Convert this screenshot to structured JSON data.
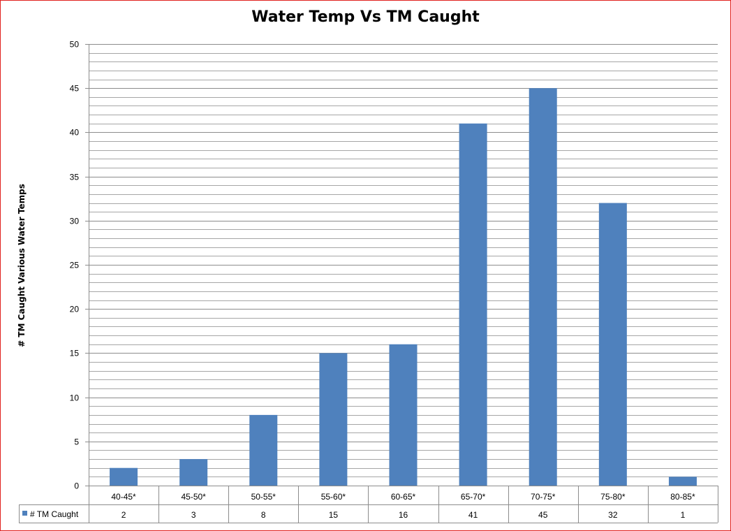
{
  "chart_data": {
    "type": "bar",
    "title": "Water Temp Vs TM Caught",
    "xlabel": "",
    "ylabel": "# TM Caught Various Water Temps",
    "categories": [
      "40-45*",
      "45-50*",
      "50-55*",
      "55-60*",
      "60-65*",
      "65-70*",
      "70-75*",
      "75-80*",
      "80-85*"
    ],
    "series": [
      {
        "name": "# TM Caught",
        "values": [
          2,
          3,
          8,
          15,
          16,
          41,
          45,
          32,
          1
        ]
      }
    ],
    "ylim": [
      0,
      50
    ],
    "y_major_tick_step": 5,
    "y_minor_grid_step": 1,
    "grid": true,
    "data_table": true,
    "legend": "data-table-left",
    "colors": {
      "bar": "#4f81bd",
      "frame_border": "#e0211f",
      "gridline": "#a6a6a6"
    }
  }
}
